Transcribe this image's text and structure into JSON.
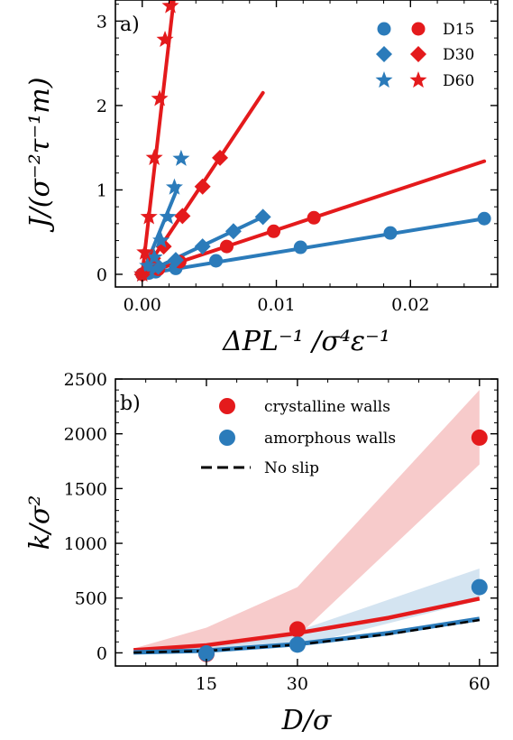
{
  "colors": {
    "red": "#e41a1c",
    "blue": "#2b7bba",
    "red_band": "#f4b9b9",
    "blue_band": "#c6dbec",
    "noslip": "#000000"
  },
  "chart_data": [
    {
      "panel_label": "a)",
      "type": "scatter",
      "xlabel": "ΔPL⁻¹ /σ⁴ε⁻¹",
      "ylabel": "J/(σ⁻²τ⁻¹m)",
      "xlim": [
        -0.002,
        0.0265
      ],
      "ylim": [
        -0.15,
        3.25
      ],
      "xticks": [
        0.0,
        0.01,
        0.02
      ],
      "xtick_labels": [
        "0.00",
        "0.01",
        "0.02"
      ],
      "yticks": [
        0,
        1,
        2,
        3
      ],
      "ytick_labels": [
        "0",
        "1",
        "2",
        "3"
      ],
      "legend": {
        "position": "top-right",
        "entries": [
          {
            "label": "D15",
            "marker": "circle"
          },
          {
            "label": "D30",
            "marker": "diamond"
          },
          {
            "label": "D60",
            "marker": "star"
          }
        ]
      },
      "series": [
        {
          "wall": "amorphous",
          "color": "blue",
          "marker": "circle",
          "x": [
            0.0,
            0.0005,
            0.001,
            0.0025,
            0.0055,
            0.0118,
            0.0185,
            0.0255
          ],
          "y": [
            0.0,
            0.015,
            0.03,
            0.07,
            0.16,
            0.32,
            0.49,
            0.66
          ],
          "fit": [
            [
              0.0,
              0.0
            ],
            [
              0.0255,
              0.66
            ]
          ]
        },
        {
          "wall": "crystalline",
          "color": "red",
          "marker": "circle",
          "x": [
            0.0,
            0.0012,
            0.0028,
            0.0063,
            0.0098,
            0.0128
          ],
          "y": [
            0.0,
            0.06,
            0.15,
            0.33,
            0.51,
            0.67
          ],
          "fit": [
            [
              0.0,
              0.0
            ],
            [
              0.0255,
              1.34
            ]
          ]
        },
        {
          "wall": "amorphous",
          "color": "blue",
          "marker": "diamond",
          "x": [
            0.0,
            0.0004,
            0.0012,
            0.0025,
            0.0045,
            0.0068,
            0.009
          ],
          "y": [
            0.0,
            0.03,
            0.09,
            0.17,
            0.33,
            0.51,
            0.68
          ],
          "fit": [
            [
              0.0,
              0.0
            ],
            [
              0.009,
              0.68
            ]
          ]
        },
        {
          "wall": "crystalline",
          "color": "red",
          "marker": "diamond",
          "x": [
            0.0,
            0.0008,
            0.0016,
            0.003,
            0.0045,
            0.0058
          ],
          "y": [
            0.0,
            0.19,
            0.33,
            0.69,
            1.04,
            1.38
          ],
          "fit": [
            [
              0.0,
              0.0
            ],
            [
              0.009,
              2.15
            ]
          ]
        },
        {
          "wall": "amorphous",
          "color": "blue",
          "marker": "star",
          "x": [
            0.0,
            0.0004,
            0.0009,
            0.0014,
            0.0019,
            0.0024,
            0.0029
          ],
          "y": [
            0.0,
            0.1,
            0.2,
            0.4,
            0.68,
            1.03,
            1.37
          ],
          "fit": [
            [
              0.0,
              0.0
            ],
            [
              0.0027,
              1.05
            ]
          ]
        },
        {
          "wall": "crystalline",
          "color": "red",
          "marker": "star",
          "x": [
            0.0,
            0.0002,
            0.0005,
            0.0009,
            0.0013,
            0.0017,
            0.0021
          ],
          "y": [
            0.0,
            0.26,
            0.68,
            1.38,
            2.08,
            2.78,
            3.18
          ],
          "fit": [
            [
              0.0,
              0.0
            ],
            [
              0.00235,
              3.25
            ]
          ]
        }
      ]
    },
    {
      "panel_label": "b)",
      "type": "scatter",
      "xlabel": "D/σ",
      "ylabel": "k/σ²",
      "xlim": [
        0,
        63
      ],
      "ylim": [
        -120,
        2500
      ],
      "xticks": [
        15,
        30,
        60
      ],
      "xtick_labels": [
        "15",
        "30",
        "60"
      ],
      "yticks": [
        0,
        500,
        1000,
        1500,
        2000,
        2500
      ],
      "ytick_labels": [
        "0",
        "500",
        "1000",
        "1500",
        "2000",
        "2500"
      ],
      "legend": {
        "position": "top-center",
        "entries": [
          {
            "label": "crystalline walls",
            "style": "red-circle"
          },
          {
            "label": "amorphous walls",
            "style": "blue-circle"
          },
          {
            "label": "No slip",
            "style": "dashed-black"
          }
        ]
      },
      "crystalline_points": {
        "x": [
          15,
          30,
          60
        ],
        "y": [
          -10,
          215,
          1965
        ]
      },
      "amorphous_points": {
        "x": [
          15,
          30,
          60
        ],
        "y": [
          -5,
          75,
          600
        ]
      },
      "crystalline_curve": {
        "x": [
          3,
          15,
          30,
          45,
          60
        ],
        "y": [
          25,
          70,
          180,
          320,
          495
        ]
      },
      "amorphous_curve": {
        "x": [
          3,
          15,
          30,
          45,
          60
        ],
        "y": [
          5,
          20,
          80,
          180,
          310
        ]
      },
      "noslip_curve": {
        "x": [
          3,
          15,
          30,
          45,
          60
        ],
        "y": [
          3,
          18,
          75,
          170,
          300
        ]
      },
      "crystalline_band": {
        "x": [
          3,
          15,
          30,
          60
        ],
        "lower": [
          20,
          40,
          150,
          1720
        ],
        "upper": [
          40,
          230,
          600,
          2400
        ]
      },
      "amorphous_band": {
        "x": [
          3,
          15,
          30,
          60
        ],
        "lower": [
          0,
          5,
          60,
          480
        ],
        "upper": [
          15,
          60,
          200,
          770
        ]
      }
    }
  ]
}
